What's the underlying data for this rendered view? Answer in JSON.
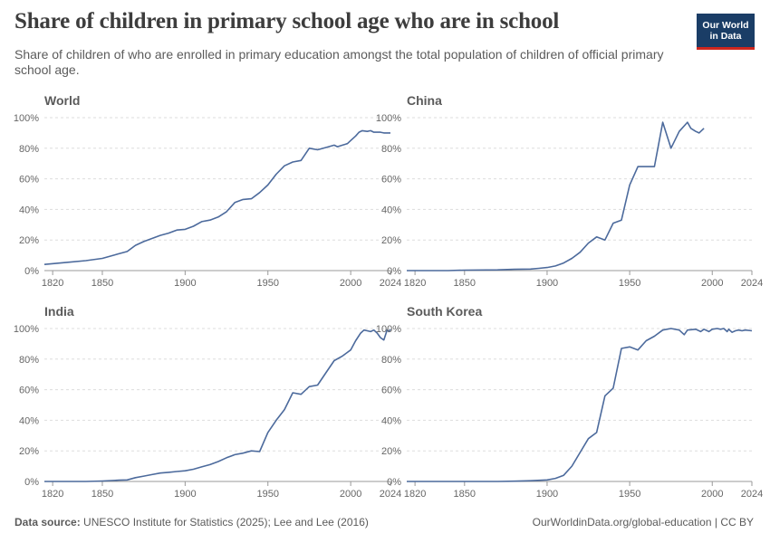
{
  "title": "Share of children in primary school age who are in school",
  "subtitle": "Share of children of who are enrolled in primary education amongst the total population of children of official primary school age.",
  "logo": {
    "line1": "Our World",
    "line2": "in Data"
  },
  "footer": {
    "source_label": "Data source:",
    "source_text": "UNESCO Institute for Statistics (2025); Lee and Lee (2016)",
    "url": "OurWorldinData.org/global-education | CC BY"
  },
  "colors": {
    "line": "#4c6a9c",
    "logo_bg": "#1a3d66",
    "logo_accent": "#ce261e"
  },
  "chart_data": [
    {
      "type": "line",
      "title": "World",
      "xlim": [
        1815,
        2024
      ],
      "ylim": [
        0,
        100
      ],
      "x_ticks": [
        "1820",
        "1850",
        "1900",
        "1950",
        "2000",
        "2024"
      ],
      "y_ticks": [
        "0%",
        "20%",
        "40%",
        "60%",
        "80%",
        "100%"
      ],
      "series": [
        {
          "points": [
            [
              1815,
              4
            ],
            [
              1830,
              5.5
            ],
            [
              1840,
              6.5
            ],
            [
              1850,
              8
            ],
            [
              1860,
              11
            ],
            [
              1865,
              12.5
            ],
            [
              1870,
              16.5
            ],
            [
              1875,
              19
            ],
            [
              1880,
              21
            ],
            [
              1885,
              23
            ],
            [
              1890,
              24.5
            ],
            [
              1895,
              26.5
            ],
            [
              1900,
              27
            ],
            [
              1905,
              29
            ],
            [
              1910,
              32
            ],
            [
              1915,
              33
            ],
            [
              1920,
              35
            ],
            [
              1925,
              38.5
            ],
            [
              1930,
              44.5
            ],
            [
              1935,
              46.5
            ],
            [
              1940,
              47
            ],
            [
              1945,
              51
            ],
            [
              1950,
              56
            ],
            [
              1955,
              63
            ],
            [
              1960,
              68.5
            ],
            [
              1965,
              71
            ],
            [
              1970,
              72
            ],
            [
              1975,
              80
            ],
            [
              1980,
              79
            ],
            [
              1985,
              80.5
            ],
            [
              1990,
              82
            ],
            [
              1992,
              81
            ],
            [
              1995,
              82
            ],
            [
              1998,
              83
            ],
            [
              2000,
              85
            ],
            [
              2003,
              88
            ],
            [
              2005,
              90.5
            ],
            [
              2007,
              91.5
            ],
            [
              2010,
              91
            ],
            [
              2012,
              91.5
            ],
            [
              2014,
              90.5
            ],
            [
              2018,
              90.5
            ],
            [
              2020,
              90
            ],
            [
              2024,
              90
            ]
          ]
        }
      ]
    },
    {
      "type": "line",
      "title": "China",
      "xlim": [
        1815,
        2024
      ],
      "ylim": [
        0,
        100
      ],
      "x_ticks": [
        "1820",
        "1850",
        "1900",
        "1950",
        "2000",
        "2024"
      ],
      "y_ticks": [
        "0%",
        "20%",
        "40%",
        "60%",
        "80%",
        "100%"
      ],
      "series": [
        {
          "points": [
            [
              1815,
              0
            ],
            [
              1840,
              0
            ],
            [
              1850,
              0.3
            ],
            [
              1870,
              0.5
            ],
            [
              1880,
              0.8
            ],
            [
              1890,
              1
            ],
            [
              1895,
              1.5
            ],
            [
              1900,
              2
            ],
            [
              1905,
              3
            ],
            [
              1910,
              5
            ],
            [
              1915,
              8
            ],
            [
              1920,
              12
            ],
            [
              1925,
              18
            ],
            [
              1930,
              22
            ],
            [
              1935,
              20
            ],
            [
              1940,
              31
            ],
            [
              1945,
              33
            ],
            [
              1950,
              56
            ],
            [
              1955,
              68
            ],
            [
              1960,
              68
            ],
            [
              1965,
              68
            ],
            [
              1970,
              97
            ],
            [
              1975,
              80
            ],
            [
              1980,
              91
            ],
            [
              1985,
              97
            ],
            [
              1987,
              93
            ],
            [
              1990,
              91
            ],
            [
              1992,
              90
            ],
            [
              1995,
              93
            ]
          ]
        }
      ]
    },
    {
      "type": "line",
      "title": "India",
      "xlim": [
        1815,
        2024
      ],
      "ylim": [
        0,
        100
      ],
      "x_ticks": [
        "1820",
        "1850",
        "1900",
        "1950",
        "2000",
        "2024"
      ],
      "y_ticks": [
        "0%",
        "20%",
        "40%",
        "60%",
        "80%",
        "100%"
      ],
      "series": [
        {
          "points": [
            [
              1815,
              0
            ],
            [
              1840,
              0
            ],
            [
              1850,
              0.3
            ],
            [
              1860,
              0.8
            ],
            [
              1865,
              1
            ],
            [
              1870,
              2.5
            ],
            [
              1875,
              3.5
            ],
            [
              1880,
              4.5
            ],
            [
              1885,
              5.5
            ],
            [
              1890,
              6
            ],
            [
              1895,
              6.5
            ],
            [
              1900,
              7
            ],
            [
              1905,
              8
            ],
            [
              1910,
              9.5
            ],
            [
              1915,
              11
            ],
            [
              1920,
              13
            ],
            [
              1925,
              15.5
            ],
            [
              1930,
              17.5
            ],
            [
              1935,
              18.5
            ],
            [
              1940,
              20
            ],
            [
              1945,
              19.5
            ],
            [
              1950,
              32
            ],
            [
              1955,
              40
            ],
            [
              1960,
              47
            ],
            [
              1965,
              58
            ],
            [
              1970,
              57
            ],
            [
              1975,
              62
            ],
            [
              1980,
              63
            ],
            [
              1985,
              71
            ],
            [
              1990,
              79
            ],
            [
              1995,
              82
            ],
            [
              2000,
              86
            ],
            [
              2003,
              92
            ],
            [
              2006,
              97
            ],
            [
              2008,
              99
            ],
            [
              2010,
              98.5
            ],
            [
              2012,
              98
            ],
            [
              2014,
              99
            ],
            [
              2016,
              97
            ],
            [
              2018,
              94
            ],
            [
              2020,
              92.5
            ],
            [
              2022,
              99
            ],
            [
              2023,
              98
            ],
            [
              2024,
              99.5
            ]
          ]
        }
      ]
    },
    {
      "type": "line",
      "title": "South Korea",
      "xlim": [
        1815,
        2024
      ],
      "ylim": [
        0,
        100
      ],
      "x_ticks": [
        "1820",
        "1850",
        "1900",
        "1950",
        "2000",
        "2024"
      ],
      "y_ticks": [
        "0%",
        "20%",
        "40%",
        "60%",
        "80%",
        "100%"
      ],
      "series": [
        {
          "points": [
            [
              1815,
              0
            ],
            [
              1860,
              0
            ],
            [
              1870,
              0
            ],
            [
              1880,
              0.2
            ],
            [
              1890,
              0.5
            ],
            [
              1900,
              1
            ],
            [
              1905,
              2
            ],
            [
              1910,
              4
            ],
            [
              1915,
              10
            ],
            [
              1920,
              19
            ],
            [
              1925,
              28
            ],
            [
              1930,
              32
            ],
            [
              1935,
              56
            ],
            [
              1940,
              61
            ],
            [
              1945,
              87
            ],
            [
              1950,
              88
            ],
            [
              1955,
              86
            ],
            [
              1960,
              92
            ],
            [
              1965,
              95
            ],
            [
              1970,
              99
            ],
            [
              1975,
              100
            ],
            [
              1980,
              99
            ],
            [
              1983,
              96
            ],
            [
              1985,
              99
            ],
            [
              1990,
              99.5
            ],
            [
              1993,
              98
            ],
            [
              1995,
              99.5
            ],
            [
              1998,
              98
            ],
            [
              2000,
              99.5
            ],
            [
              2003,
              100
            ],
            [
              2005,
              99.5
            ],
            [
              2007,
              100
            ],
            [
              2009,
              98
            ],
            [
              2010,
              99.5
            ],
            [
              2012,
              97.5
            ],
            [
              2014,
              98.5
            ],
            [
              2016,
              99
            ],
            [
              2018,
              98.5
            ],
            [
              2020,
              99
            ],
            [
              2024,
              98.5
            ]
          ]
        }
      ]
    }
  ]
}
